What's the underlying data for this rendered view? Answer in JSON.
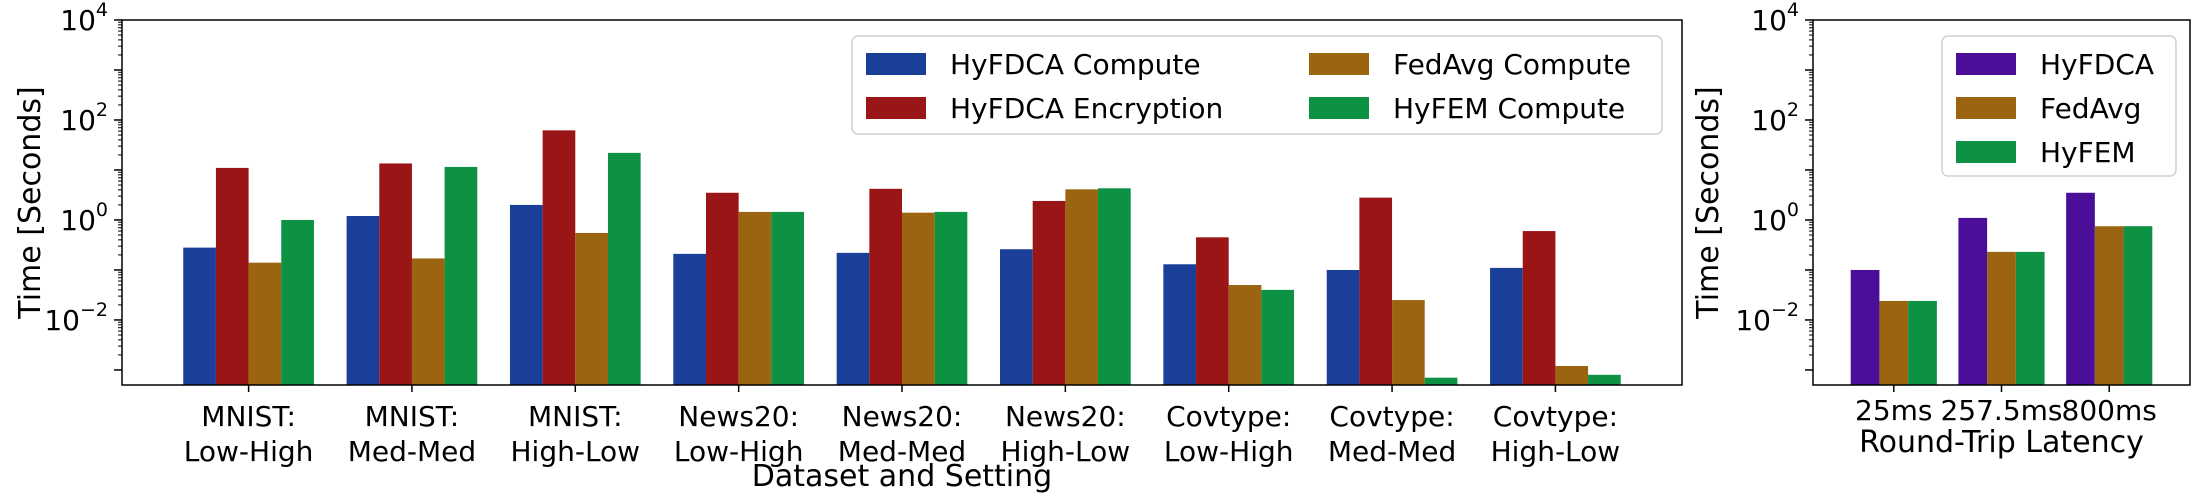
{
  "charts": [
    {
      "type": "bar",
      "yscale": "log",
      "ylim": [
        0.0005,
        10000
      ],
      "ylabel": "Time [Seconds]",
      "xlabel": "Dataset and Setting",
      "yticks": [
        {
          "base": "10",
          "exp": "4",
          "value": 10000
        },
        {
          "base": "10",
          "exp": "2",
          "value": 100
        },
        {
          "base": "10",
          "exp": "0",
          "value": 1
        },
        {
          "base": "10",
          "exp": "−2",
          "value": 0.01
        }
      ],
      "categories": [
        [
          "MNIST:",
          "Low-High"
        ],
        [
          "MNIST:",
          "Med-Med"
        ],
        [
          "MNIST:",
          "High-Low"
        ],
        [
          "News20:",
          "Low-High"
        ],
        [
          "News20:",
          "Med-Med"
        ],
        [
          "News20:",
          "High-Low"
        ],
        [
          "Covtype:",
          "Low-High"
        ],
        [
          "Covtype:",
          "Med-Med"
        ],
        [
          "Covtype:",
          "High-Low"
        ]
      ],
      "series": [
        {
          "name": "HyFDCA Compute",
          "color": "#1a3f99",
          "values": [
            0.28,
            1.2,
            2.0,
            0.21,
            0.22,
            0.26,
            0.13,
            0.1,
            0.11
          ]
        },
        {
          "name": "HyFDCA Encryption",
          "color": "#9a1515",
          "values": [
            11.0,
            13.5,
            62.0,
            3.5,
            4.2,
            2.4,
            0.45,
            2.8,
            0.6
          ]
        },
        {
          "name": "FedAvg Compute",
          "color": "#9a6410",
          "values": [
            0.14,
            0.17,
            0.55,
            1.45,
            1.4,
            4.1,
            0.05,
            0.025,
            0.0012
          ]
        },
        {
          "name": "HyFEM Compute",
          "color": "#0c9242",
          "values": [
            1.0,
            11.5,
            22.0,
            1.45,
            1.45,
            4.3,
            0.04,
            0.0007,
            0.0008
          ]
        }
      ],
      "legend_columns": 2
    },
    {
      "type": "bar",
      "yscale": "log",
      "ylim": [
        0.0005,
        10000
      ],
      "ylabel": "Time [Seconds]",
      "xlabel": "Round-Trip Latency",
      "yticks": [
        {
          "base": "10",
          "exp": "4",
          "value": 10000
        },
        {
          "base": "10",
          "exp": "2",
          "value": 100
        },
        {
          "base": "10",
          "exp": "0",
          "value": 1
        },
        {
          "base": "10",
          "exp": "−2",
          "value": 0.01
        }
      ],
      "categories": [
        [
          "25ms"
        ],
        [
          "257.5ms"
        ],
        [
          "800ms"
        ]
      ],
      "series": [
        {
          "name": "HyFDCA",
          "color": "#4a0e99",
          "values": [
            0.1,
            1.1,
            3.5
          ]
        },
        {
          "name": "FedAvg",
          "color": "#9a6410",
          "values": [
            0.024,
            0.23,
            0.75
          ]
        },
        {
          "name": "HyFEM",
          "color": "#0c9242",
          "values": [
            0.024,
            0.23,
            0.75
          ]
        }
      ],
      "legend_columns": 1
    }
  ]
}
